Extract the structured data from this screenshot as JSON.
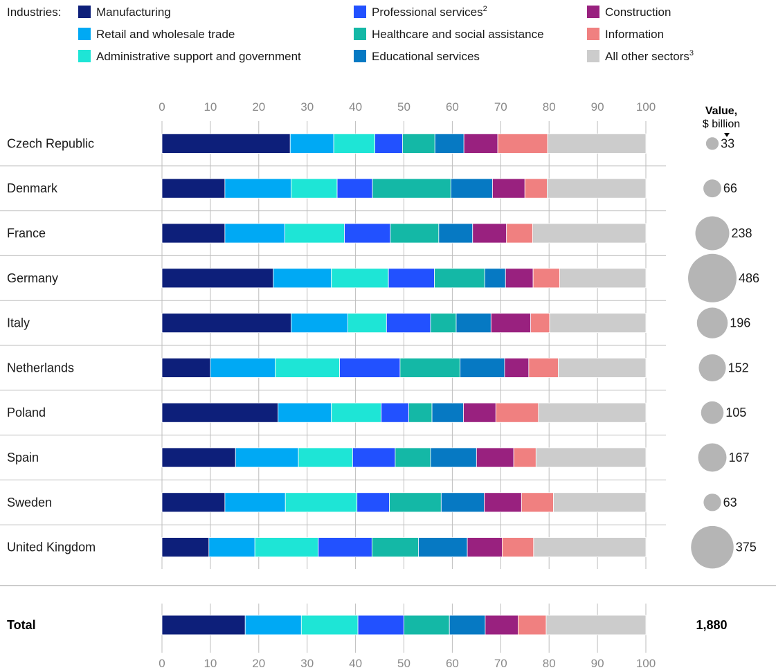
{
  "legend": {
    "prefix": "Industries:"
  },
  "value_header": {
    "line1": "Value,",
    "line2": "$ billion"
  },
  "chart_data": {
    "type": "bar",
    "stacked": true,
    "orientation": "horizontal",
    "xlim": [
      0,
      100
    ],
    "x_ticks": [
      0,
      10,
      20,
      30,
      40,
      50,
      60,
      70,
      80,
      90,
      100
    ],
    "categories": [
      "Czech Republic",
      "Denmark",
      "France",
      "Germany",
      "Italy",
      "Netherlands",
      "Poland",
      "Spain",
      "Sweden",
      "United Kingdom",
      "Total"
    ],
    "series": [
      {
        "name": "Manufacturing",
        "label": "Manufacturing",
        "sup": "",
        "color": "#0d1f7a",
        "values": [
          26.5,
          13,
          13,
          23,
          26.7,
          10,
          24,
          15.2,
          13,
          9.7,
          17.2
        ]
      },
      {
        "name": "Retail and wholesale trade",
        "label": "Retail and wholesale trade",
        "sup": "",
        "color": "#00a9f4",
        "values": [
          9,
          13.7,
          12.4,
          12,
          11.7,
          13.4,
          11,
          13,
          12.5,
          9.5,
          11.6
        ]
      },
      {
        "name": "Administrative support and government",
        "label": "Administrative support and government",
        "sup": "",
        "color": "#1ee5d6",
        "values": [
          8.5,
          9.5,
          12.3,
          11.8,
          8,
          13.3,
          10.3,
          11.2,
          14.8,
          13.1,
          11.7
        ]
      },
      {
        "name": "Professional services",
        "label": "Professional services",
        "sup": "2",
        "color": "#2251ff",
        "values": [
          5.7,
          7.3,
          9.5,
          9.5,
          9.1,
          12.5,
          5.7,
          8.8,
          6.7,
          11.1,
          9.5
        ]
      },
      {
        "name": "Healthcare and social assistance",
        "label": "Healthcare and social assistance",
        "sup": "",
        "color": "#14b8a6",
        "values": [
          6.7,
          16.2,
          10,
          10.4,
          5.3,
          12.4,
          4.8,
          7.3,
          10.7,
          9.6,
          9.4
        ]
      },
      {
        "name": "Educational services",
        "label": "Educational services",
        "sup": "",
        "color": "#0679c3",
        "values": [
          6,
          8.6,
          7,
          4.3,
          7.2,
          9.2,
          6.5,
          9.5,
          8.9,
          10.1,
          7.4
        ]
      },
      {
        "name": "Construction",
        "label": "Construction",
        "sup": "",
        "color": "#99217f",
        "values": [
          7,
          6.7,
          7,
          5.7,
          8.2,
          5,
          6.7,
          7.7,
          7.7,
          7.2,
          6.8
        ]
      },
      {
        "name": "Information",
        "label": "Information",
        "sup": "",
        "color": "#f08080",
        "values": [
          10.3,
          4.6,
          5.4,
          5.5,
          3.9,
          6.1,
          8.8,
          4.6,
          6.6,
          6.5,
          5.8
        ]
      },
      {
        "name": "All other sectors",
        "label": "All other sectors",
        "sup": "3",
        "color": "#cccccc",
        "values": [
          20.3,
          20.4,
          23.4,
          17.8,
          19.9,
          18.1,
          22.2,
          22.7,
          19.1,
          23.2,
          20.6
        ]
      }
    ],
    "values_billion": [
      33,
      66,
      238,
      486,
      196,
      152,
      105,
      167,
      63,
      375,
      1880
    ],
    "values_display": [
      "33",
      "66",
      "238",
      "486",
      "196",
      "152",
      "105",
      "167",
      "63",
      "375",
      "1,880"
    ]
  }
}
